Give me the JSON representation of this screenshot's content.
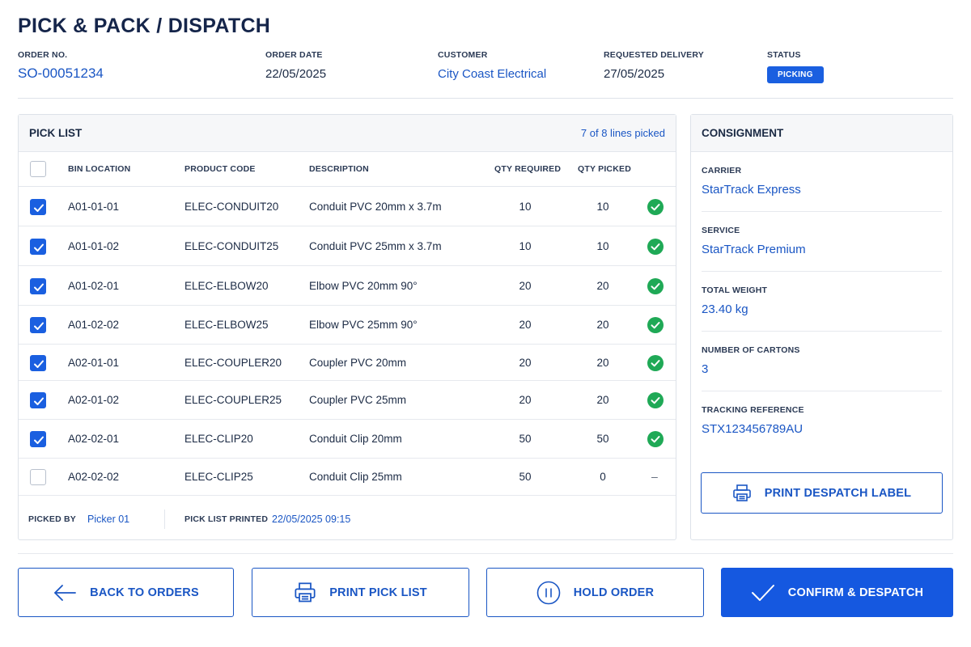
{
  "page": {
    "title": "PICK & PACK / DISPATCH"
  },
  "order": {
    "number_label": "ORDER NO.",
    "number": "SO-00051234",
    "date_label": "ORDER DATE",
    "date": "22/05/2025",
    "customer_label": "CUSTOMER",
    "customer": "City Coast Electrical",
    "delivery_label": "REQUESTED DELIVERY",
    "delivery": "27/05/2025",
    "status_label": "STATUS",
    "status": "PICKING"
  },
  "pick_list": {
    "title": "PICK LIST",
    "progress": "7 of 8 lines picked",
    "columns": {
      "bin": "BIN LOCATION",
      "code": "PRODUCT CODE",
      "desc": "DESCRIPTION",
      "qty_req": "QTY REQUIRED",
      "qty_picked": "QTY PICKED"
    },
    "rows": [
      {
        "checked": true,
        "bin": "A01-01-01",
        "code": "ELEC-CONDUIT20",
        "desc": "Conduit PVC 20mm x 3.7m",
        "qty_req": "10",
        "qty_picked": "10",
        "status": "picked"
      },
      {
        "checked": true,
        "bin": "A01-01-02",
        "code": "ELEC-CONDUIT25",
        "desc": "Conduit PVC 25mm x 3.7m",
        "qty_req": "10",
        "qty_picked": "10",
        "status": "picked"
      },
      {
        "checked": true,
        "bin": "A01-02-01",
        "code": "ELEC-ELBOW20",
        "desc": "Elbow PVC 20mm 90°",
        "qty_req": "20",
        "qty_picked": "20",
        "status": "picked"
      },
      {
        "checked": true,
        "bin": "A01-02-02",
        "code": "ELEC-ELBOW25",
        "desc": "Elbow PVC 25mm 90°",
        "qty_req": "20",
        "qty_picked": "20",
        "status": "picked"
      },
      {
        "checked": true,
        "bin": "A02-01-01",
        "code": "ELEC-COUPLER20",
        "desc": "Coupler PVC 20mm",
        "qty_req": "20",
        "qty_picked": "20",
        "status": "picked"
      },
      {
        "checked": true,
        "bin": "A02-01-02",
        "code": "ELEC-COUPLER25",
        "desc": "Coupler PVC 25mm",
        "qty_req": "20",
        "qty_picked": "20",
        "status": "picked"
      },
      {
        "checked": true,
        "bin": "A02-02-01",
        "code": "ELEC-CLIP20",
        "desc": "Conduit Clip 20mm",
        "qty_req": "50",
        "qty_picked": "50",
        "status": "picked"
      },
      {
        "checked": false,
        "bin": "A02-02-02",
        "code": "ELEC-CLIP25",
        "desc": "Conduit Clip 25mm",
        "qty_req": "50",
        "qty_picked": "0",
        "status": "pending",
        "status_text": "–"
      }
    ],
    "picked_by_label": "PICKED BY",
    "picked_by": "Picker 01",
    "printed_label": "PICK LIST PRINTED",
    "printed": "22/05/2025 09:15"
  },
  "consignment": {
    "title": "CONSIGNMENT",
    "carrier_label": "CARRIER",
    "carrier": "StarTrack Express",
    "service_label": "SERVICE",
    "service": "StarTrack Premium",
    "weight_label": "TOTAL WEIGHT",
    "weight": "23.40 kg",
    "cartons_label": "NUMBER OF CARTONS",
    "cartons": "3",
    "tracking_label": "TRACKING REFERENCE",
    "tracking": "STX123456789AU",
    "print_label_button": "PRINT DESPATCH LABEL"
  },
  "actions": {
    "back": "BACK TO ORDERS",
    "print_pick": "PRINT PICK LIST",
    "hold": "HOLD ORDER",
    "confirm": "CONFIRM & DESPATCH"
  },
  "colors": {
    "accent": "#1558e0",
    "link": "#1a56c4",
    "success": "#1fa956",
    "border": "#dde2e9"
  },
  "icons": [
    "check-icon",
    "check-circle-icon",
    "printer-icon",
    "arrow-left-icon",
    "pause-circle-icon"
  ]
}
